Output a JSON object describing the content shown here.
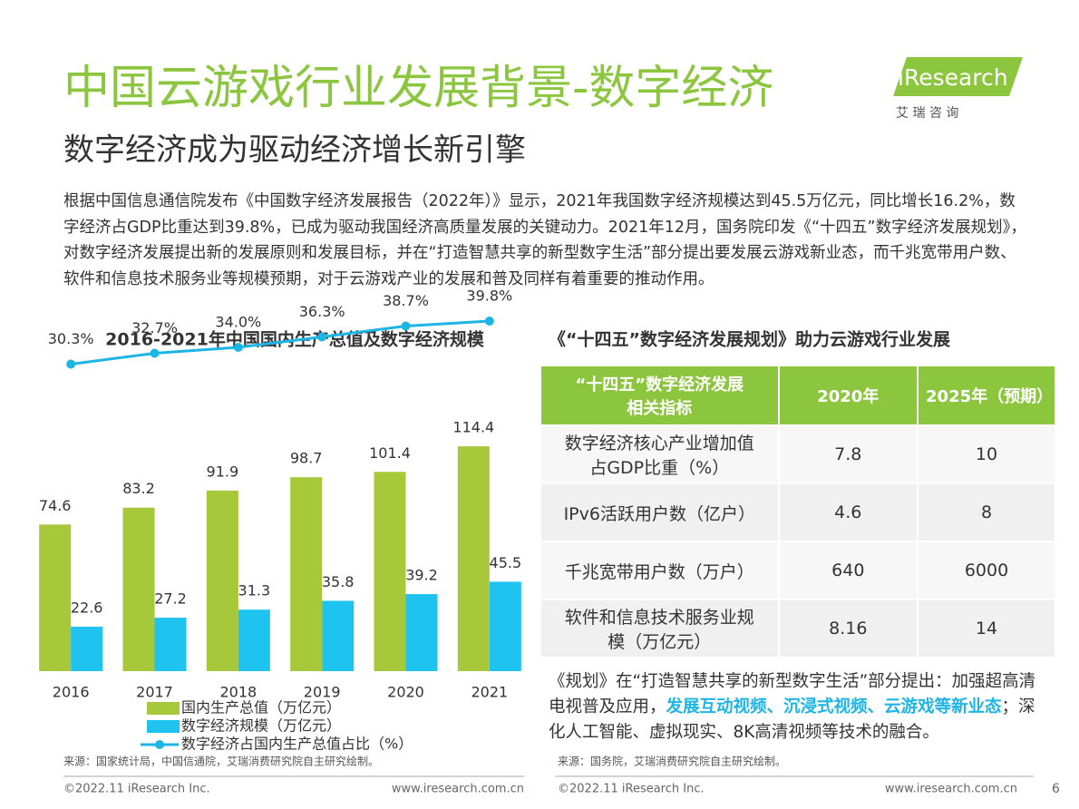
{
  "header": {
    "title": "中国云游戏行业发展背景-数字经济",
    "subtitle": "数字经济成为驱动经济增长新引擎",
    "logo": "iResearch",
    "logo_cn": "艾 瑞 咨 询"
  },
  "intro": "根据中国信息通信院发布《中国数字经济发展报告（2022年）》显示，2021年我国数字经济规模达到45.5万亿元，同比增长16.2%，数字经济占GDP比重达到39.8%，已成为驱动我国经济高质量发展的关键动力。2021年12月，国务院印发《“十四五”数字经济发展规划》，对数字经济发展提出新的发展原则和发展目标，并在“打造智慧共享的新型数字生活”部分提出要发展云游戏新业态，而千兆宽带用户数、软件和信息技术服务业等规模预期，对于云游戏产业的发展和普及同样有着重要的推动作用。",
  "chart_data": {
    "type": "bar",
    "title": "2016-2021年中国国内生产总值及数字经济规模",
    "categories": [
      "2016",
      "2017",
      "2018",
      "2019",
      "2020",
      "2021"
    ],
    "series": [
      {
        "name": "国内生产总值（万亿元）",
        "color": "#a6c83a",
        "values": [
          74.6,
          83.2,
          91.9,
          98.7,
          101.4,
          114.4
        ]
      },
      {
        "name": "数字经济规模（万亿元）",
        "color": "#1fc3f0",
        "values": [
          22.6,
          27.2,
          31.3,
          35.8,
          39.2,
          45.5
        ]
      },
      {
        "name": "数字经济占国内生产总值占比（%）",
        "color": "#1db5e6",
        "type": "line",
        "axis": "y2",
        "values": [
          30.3,
          32.7,
          34.0,
          36.3,
          38.7,
          39.8
        ],
        "value_labels": [
          "30.3%",
          "32.7%",
          "34.0%",
          "36.3%",
          "38.7%",
          "39.8%"
        ]
      }
    ],
    "ylim": [
      0,
      120
    ],
    "y2lim": [
      20,
      60
    ],
    "source": "来源：国家统计局，中国信通院，艾瑞消费研究院自主研究绘制。"
  },
  "table": {
    "title": "《“十四五”数字经济发展规划》助力云游戏行业发展",
    "header": [
      "“十四五”数字经济发展相关指标",
      "2020年",
      "2025年（预期）"
    ],
    "rows": [
      [
        "数字经济核心产业增加值占GDP比重（%）",
        7.8,
        10
      ],
      [
        "IPv6活跃用户数（亿户）",
        4.6,
        8
      ],
      [
        "千兆宽带用户数（万户）",
        640,
        6000
      ],
      [
        "软件和信息技术服务业规模（万亿元）",
        8.16,
        14
      ]
    ],
    "note": {
      "before": "《规划》在“打造智慧共享的新型数字生活”部分提出：加强超高清电视普及应用，",
      "highlight": "发展互动视频、沉浸式视频、云游戏等新业态",
      "after": "；深化人工智能、虚拟现实、8K高清视频等技术的融合。"
    },
    "source": "来源：国务院，艾瑞消费研究院自主研究绘制。"
  },
  "footer": {
    "left_copyright": "©2022.11 iResearch Inc.",
    "left_url": "www.iresearch.com.cn",
    "right_copyright": "©2022.11 iResearch Inc.",
    "right_url": "www.iresearch.com.cn",
    "page": "6"
  }
}
